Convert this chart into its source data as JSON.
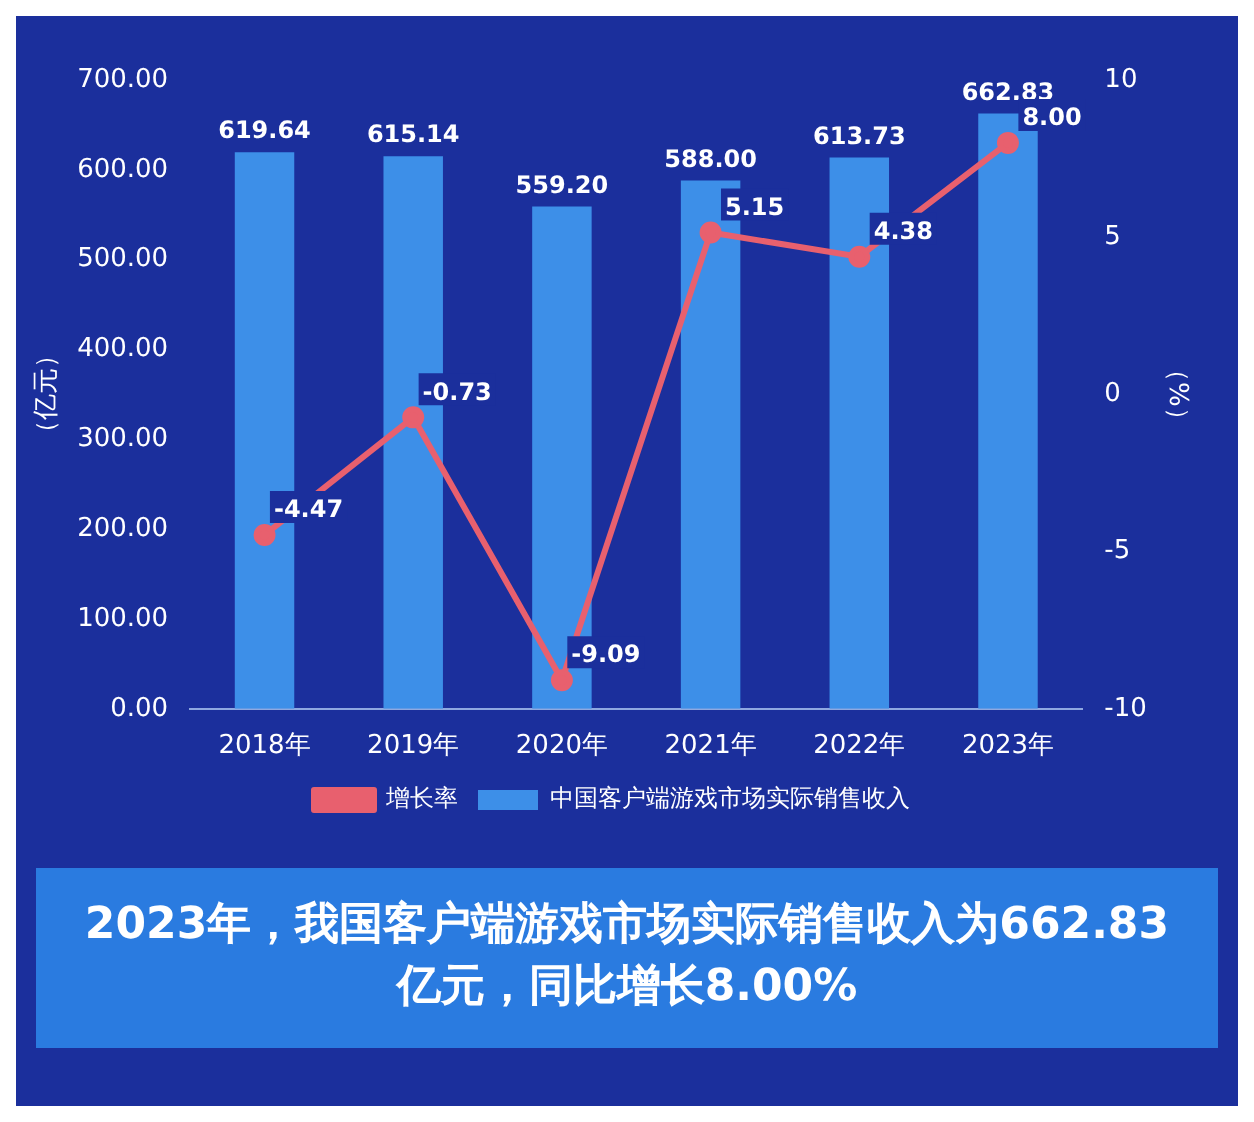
{
  "chart_data": {
    "type": "bar",
    "categories": [
      "2018年",
      "2019年",
      "2020年",
      "2021年",
      "2022年",
      "2023年"
    ],
    "series": [
      {
        "name": "中国客户端游戏市场实际销售收入",
        "color": "#3d8fe8",
        "values": [
          619.64,
          615.14,
          559.2,
          588.0,
          613.73,
          662.83
        ],
        "value_labels": [
          "619.64",
          "615.14",
          "559.20",
          "588.00",
          "613.73",
          "662.83"
        ]
      },
      {
        "name": "增长率",
        "type": "line",
        "axis": "y2",
        "color": "#e8606e",
        "values": [
          -4.47,
          -0.73,
          -9.09,
          5.15,
          4.38,
          8.0
        ],
        "value_labels": [
          "-4.47",
          "-0.73",
          "-9.09",
          "5.15",
          "4.38",
          "8.00"
        ]
      }
    ],
    "ylabel": "（亿元）",
    "y2label": "（%）",
    "ylim": [
      0,
      700
    ],
    "yticks": [
      {
        "value": 0,
        "label": "0.00"
      },
      {
        "value": 100,
        "label": "100.00"
      },
      {
        "value": 200,
        "label": "200.00"
      },
      {
        "value": 300,
        "label": "300.00"
      },
      {
        "value": 400,
        "label": "400.00"
      },
      {
        "value": 500,
        "label": "500.00"
      },
      {
        "value": 600,
        "label": "600.00"
      },
      {
        "value": 700,
        "label": "700.00"
      }
    ],
    "y2lim": [
      -10,
      10
    ],
    "y2ticks": [
      -10,
      -5,
      0,
      5,
      10
    ],
    "marker": "circle",
    "legend": "bottom",
    "grid": false,
    "annotations": [
      "2023年，我国客户端游戏市场实际销售收入为662.83亿元，同比增长8.00%"
    ]
  }
}
